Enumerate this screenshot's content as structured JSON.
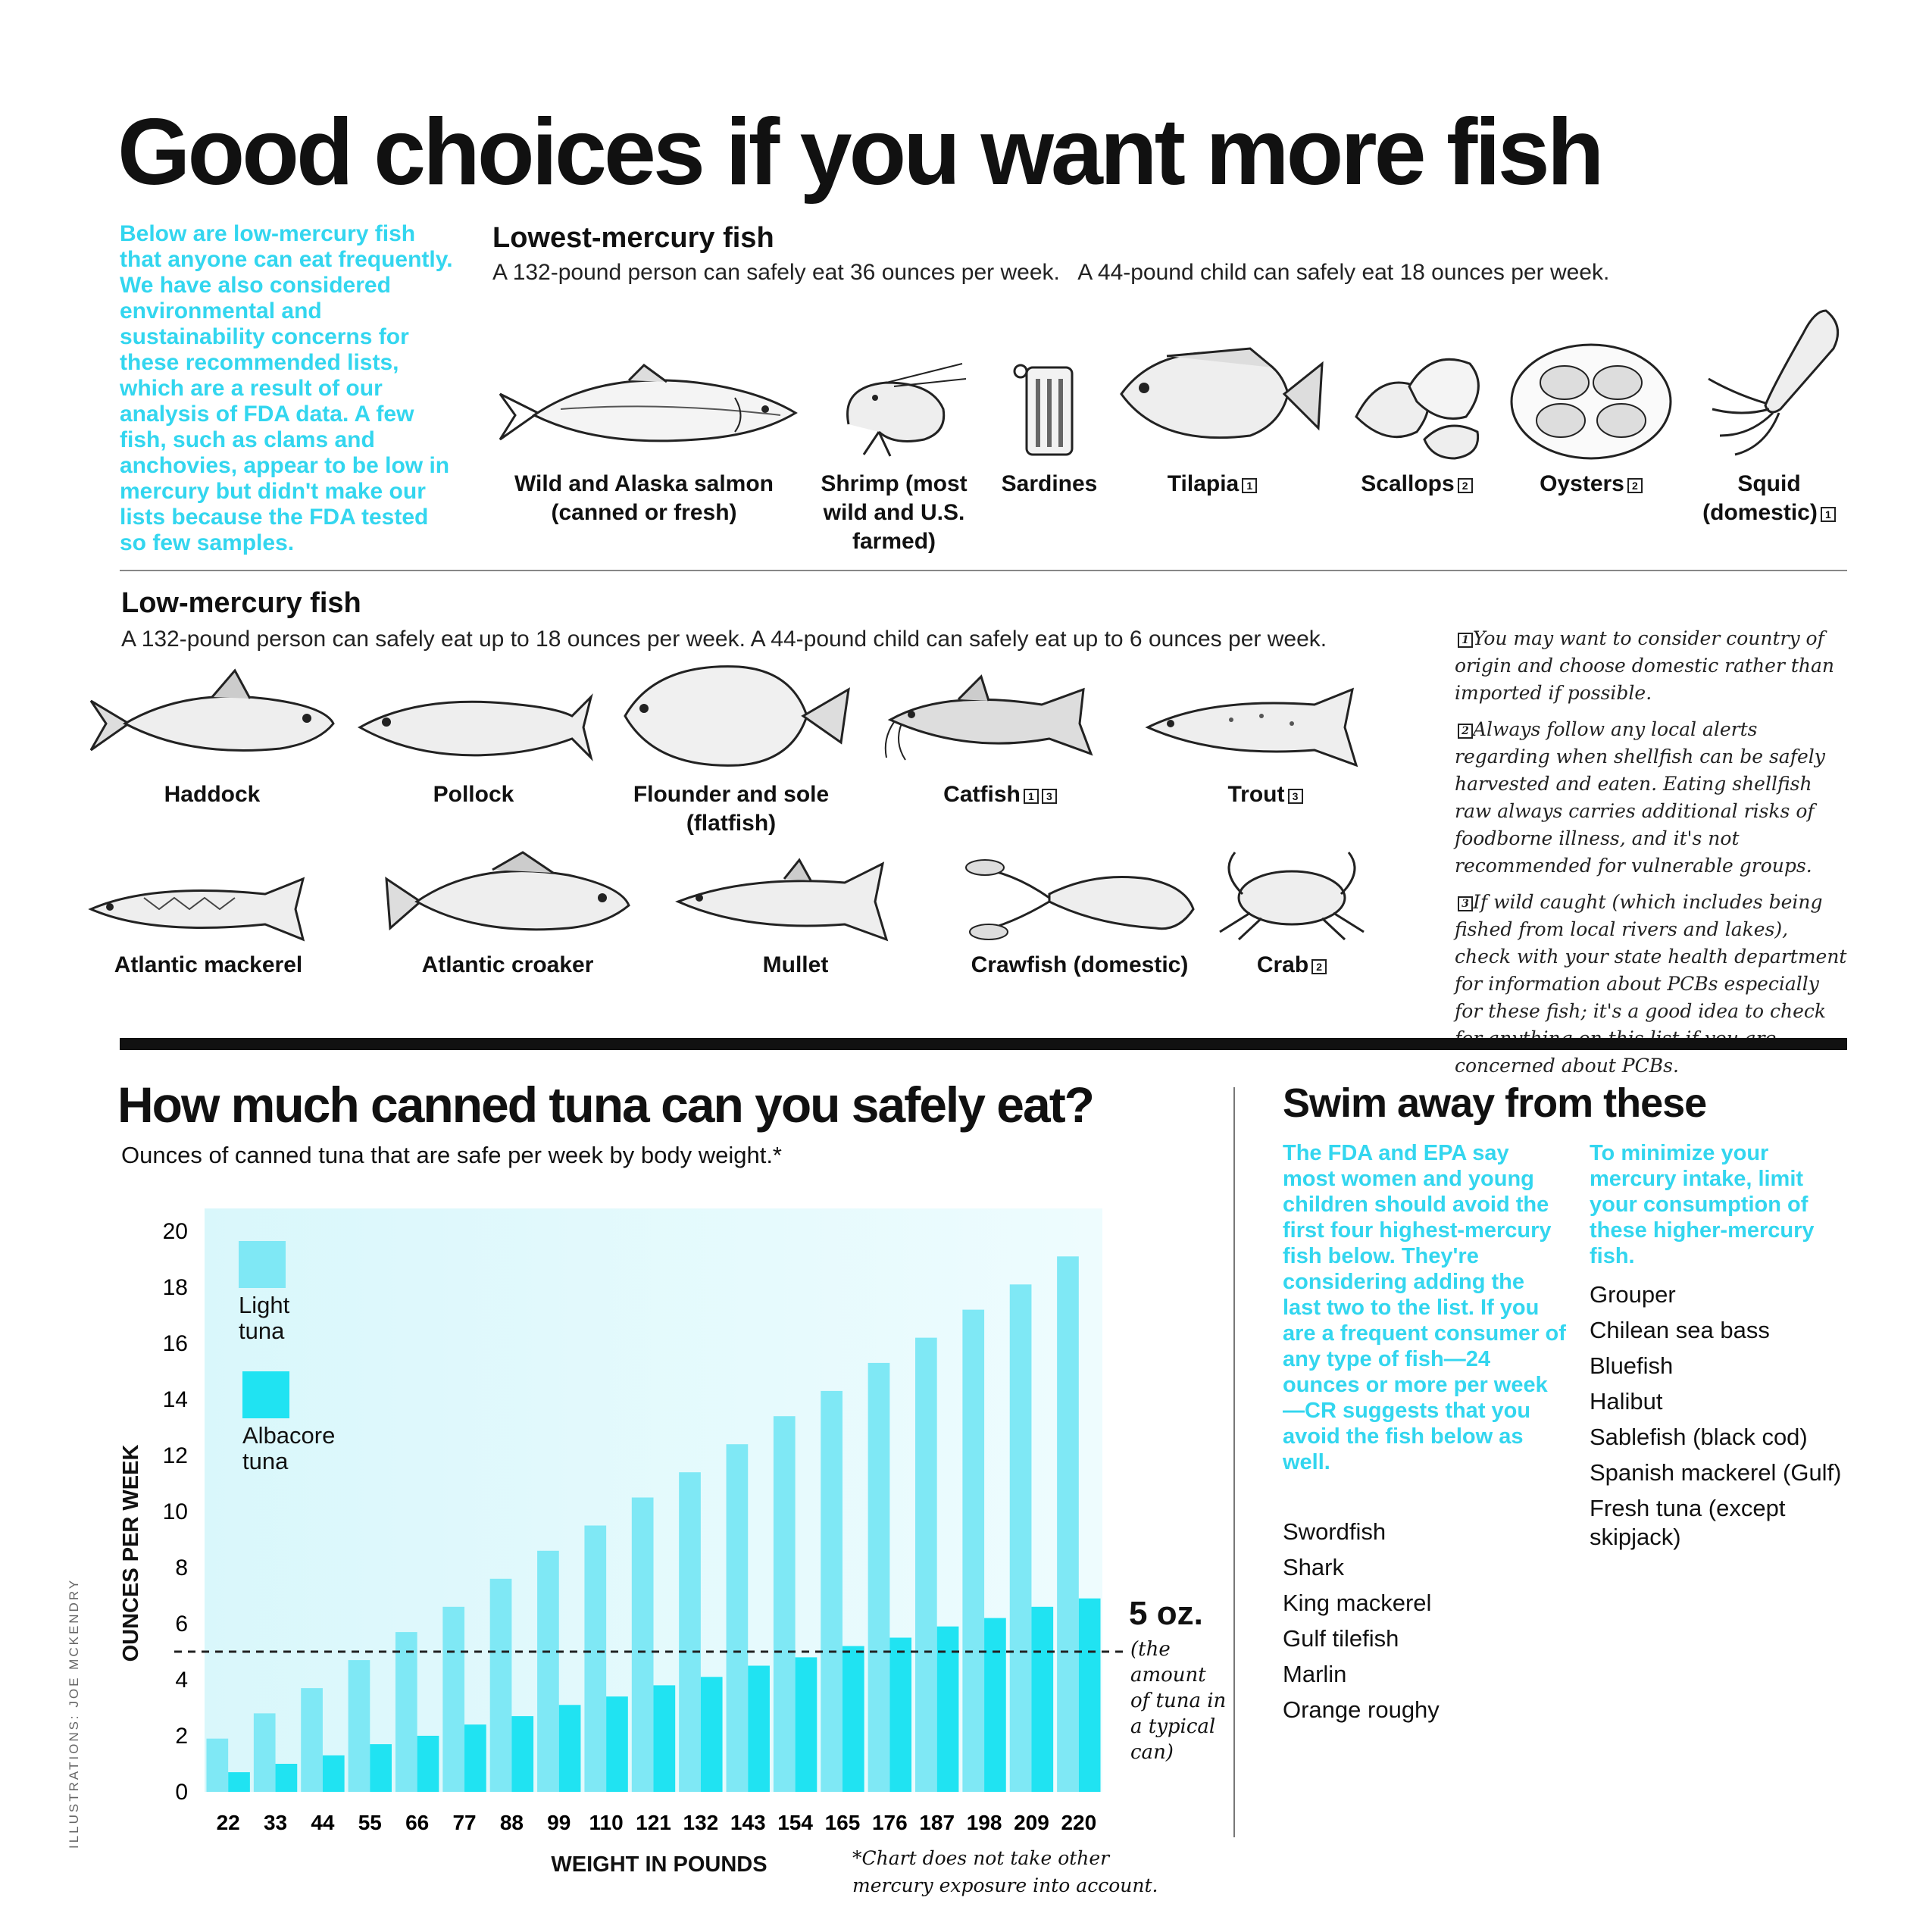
{
  "headline": "Good choices if you want more fish",
  "intro": "Below are low-mercury fish that anyone can eat frequently. We have also considered environmental and sustainability concerns for these recommended lists, which are a result of our analysis of FDA data. A few fish, such as clams and anchovies, appear to be low in mercury but didn't make our lists because the FDA tested so few samples.",
  "lowest": {
    "title": "Lowest-mercury fish",
    "subtitle": "A 132-pound person can safely eat 36 ounces per week.   A 44-pound child can safely eat 18 ounces per week.",
    "items": [
      {
        "label": "Wild and Alaska salmon (canned or fresh)",
        "note": ""
      },
      {
        "label": "Shrimp (most wild and U.S. farmed)",
        "note": ""
      },
      {
        "label": "Sardines",
        "note": ""
      },
      {
        "label": "Tilapia",
        "note": "1"
      },
      {
        "label": "Scallops",
        "note": "2"
      },
      {
        "label": "Oysters",
        "note": "2"
      },
      {
        "label": "Squid (domestic)",
        "note": "1"
      }
    ]
  },
  "low": {
    "title": "Low-mercury fish",
    "subtitle": "A 132-pound person can safely eat up to 18 ounces per week.   A 44-pound child can safely eat up to 6 ounces per week.",
    "row1": [
      {
        "label": "Haddock",
        "note": ""
      },
      {
        "label": "Pollock",
        "note": ""
      },
      {
        "label": "Flounder and sole (flatfish)",
        "note": ""
      },
      {
        "label": "Catfish",
        "note": "1 3"
      },
      {
        "label": "Trout",
        "note": "3"
      }
    ],
    "row2": [
      {
        "label": "Atlantic mackerel",
        "note": ""
      },
      {
        "label": "Atlantic croaker",
        "note": ""
      },
      {
        "label": "Mullet",
        "note": ""
      },
      {
        "label": "Crawfish (domestic)",
        "note": ""
      },
      {
        "label": "Crab",
        "note": "2"
      }
    ]
  },
  "footnotes": [
    {
      "num": "1",
      "text": "You may want to consider country of origin and choose domestic rather than imported if possible."
    },
    {
      "num": "2",
      "text": "Always follow any local alerts regarding when shellfish can be safely harvested and eaten.  Eating shellfish raw always carries additional risks of foodborne illness, and it's not recommended for vulnerable groups."
    },
    {
      "num": "3",
      "text": "If wild caught (which includes being fished from local rivers and lakes), check with your state health department for information about PCBs especially for these fish; it's a good idea to check for anything on this list if you are concerned about PCBs."
    }
  ],
  "tuna": {
    "title": "How much canned tuna can you safely eat?",
    "subtitle": "Ounces of canned tuna that are safe per week by body weight.*",
    "reference_label": "5 oz.",
    "reference_note": "(the amount of tuna in a typical can)",
    "chart_footnote": "*Chart does not take other mercury exposure into account."
  },
  "chart_data": {
    "type": "bar",
    "title": "How much canned tuna can you safely eat?",
    "xlabel": "WEIGHT IN POUNDS",
    "ylabel": "OUNCES PER WEEK",
    "ylim": [
      0,
      20
    ],
    "yticks": [
      0,
      2,
      4,
      6,
      8,
      10,
      12,
      14,
      16,
      18,
      20
    ],
    "grid": false,
    "legend": "top-left",
    "categories": [
      "22",
      "33",
      "44",
      "55",
      "66",
      "77",
      "88",
      "99",
      "110",
      "121",
      "132",
      "143",
      "154",
      "165",
      "176",
      "187",
      "198",
      "209",
      "220"
    ],
    "series": [
      {
        "name": "Light tuna",
        "color": "#7fe8f5",
        "values": [
          1.9,
          2.8,
          3.7,
          4.7,
          5.7,
          6.6,
          7.6,
          8.6,
          9.5,
          10.5,
          11.4,
          12.4,
          13.4,
          14.3,
          15.3,
          16.2,
          17.2,
          18.1,
          19.1
        ]
      },
      {
        "name": "Albacore tuna",
        "color": "#20e3f2",
        "values": [
          0.7,
          1.0,
          1.3,
          1.7,
          2.0,
          2.4,
          2.7,
          3.1,
          3.4,
          3.8,
          4.1,
          4.5,
          4.8,
          5.2,
          5.5,
          5.9,
          6.2,
          6.6,
          6.9
        ]
      }
    ],
    "reference_line": {
      "value": 5,
      "label": "5 oz."
    }
  },
  "swim": {
    "title": "Swim away from these",
    "left_text": "The FDA and EPA say most women and young children should avoid the first four highest-mercury fish below. They're considering adding the last two to the list. If you are a frequent consumer of any type of fish—24 ounces or more per week—CR suggests that you avoid the fish below as well.",
    "left_list": [
      "Swordfish",
      "Shark",
      "King mackerel",
      "Gulf tilefish",
      "Marlin",
      "Orange roughy"
    ],
    "right_text": "To minimize your mercury intake, limit your consumption of these higher-mercury fish.",
    "right_list": [
      "Grouper",
      "Chilean sea bass",
      "Bluefish",
      "Halibut",
      "Sablefish (black cod)",
      "Spanish mackerel (Gulf)",
      "Fresh tuna (except skipjack)"
    ]
  },
  "credit": "ILLUSTRATIONS: JOE MCKENDRY",
  "colors": {
    "cyan": "#33d6ef",
    "light_tuna": "#7fe8f5",
    "albacore": "#20e3f2",
    "plot_bg": "#e3f9fc"
  }
}
